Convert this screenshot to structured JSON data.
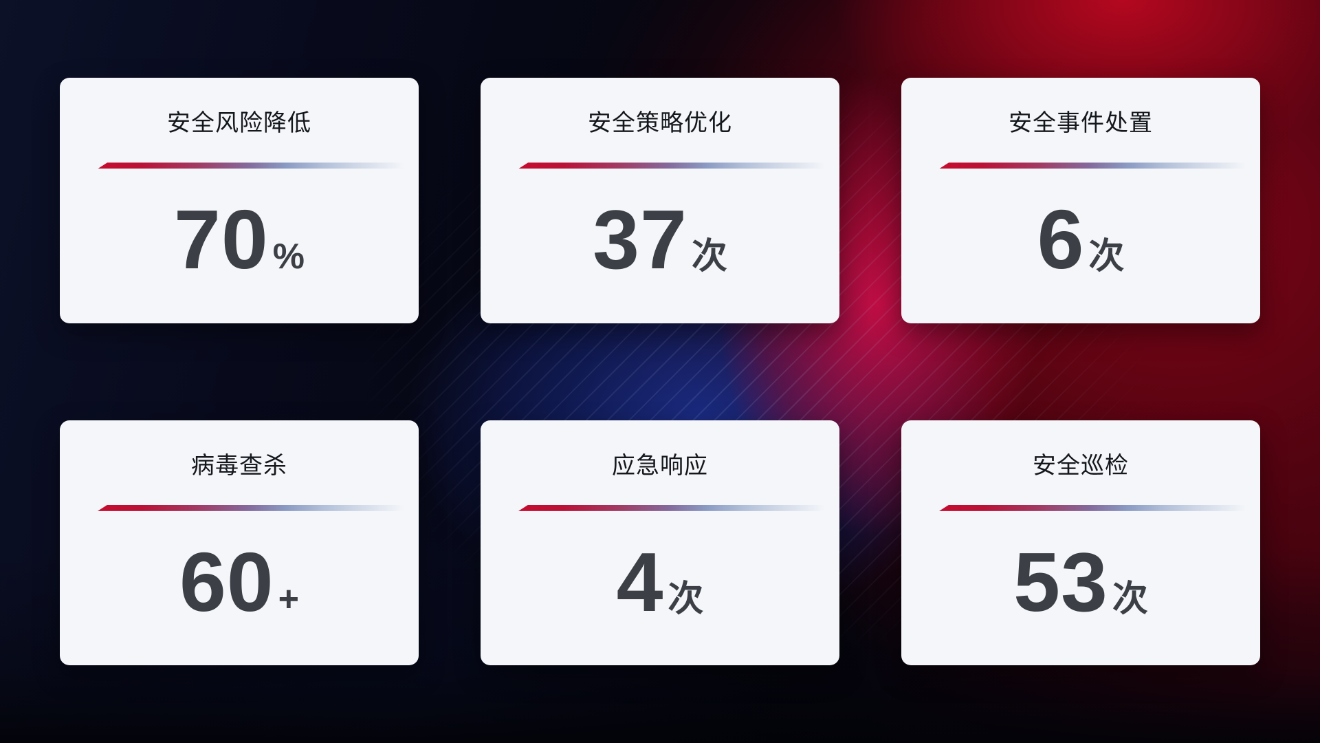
{
  "page": {
    "description_colors": {
      "background_dark_navy": "#0b1026",
      "background_black": "#05060d",
      "background_red_bright": "#c00a24",
      "background_crimson_hotspot": "#c70e46",
      "background_blue_beam": "#1b2e8c",
      "card_background": "#f4f6f9",
      "divider_red": "#c50c2f",
      "divider_blue": "#b2bfd9",
      "title_color": "#14171c",
      "value_color": "#3c4046"
    }
  },
  "cards": [
    {
      "title": "安全风险降低",
      "value": "70",
      "unit": "%"
    },
    {
      "title": "安全策略优化",
      "value": "37",
      "unit": "次"
    },
    {
      "title": "安全事件处置",
      "value": "6",
      "unit": "次"
    },
    {
      "title": "病毒查杀",
      "value": "60",
      "unit": "+"
    },
    {
      "title": "应急响应",
      "value": "4",
      "unit": "次"
    },
    {
      "title": "安全巡检",
      "value": "53",
      "unit": "次"
    }
  ]
}
